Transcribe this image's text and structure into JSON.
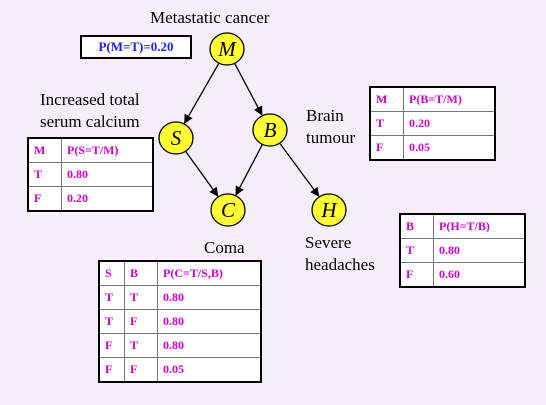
{
  "nodes": [
    {
      "id": "M",
      "letter": "M",
      "label": "Metastatic cancer"
    },
    {
      "id": "S",
      "letter": "S",
      "label_lines": [
        "Increased total",
        "serum calcium"
      ]
    },
    {
      "id": "B",
      "letter": "B",
      "label_lines": [
        "Brain",
        "tumour"
      ]
    },
    {
      "id": "C",
      "letter": "C",
      "label": "Coma"
    },
    {
      "id": "H",
      "letter": "H",
      "label_lines": [
        "Severe",
        "headaches"
      ]
    }
  ],
  "edges": [
    {
      "from": "M",
      "to": "S"
    },
    {
      "from": "M",
      "to": "B"
    },
    {
      "from": "S",
      "to": "C"
    },
    {
      "from": "B",
      "to": "C"
    },
    {
      "from": "B",
      "to": "H"
    }
  ],
  "prior_M": "P(M=T)=0.20",
  "cpt_S": {
    "headers": [
      "M",
      "P(S=T/M)"
    ],
    "rows": [
      [
        "T",
        "0.80"
      ],
      [
        "F",
        "0.20"
      ]
    ]
  },
  "cpt_B": {
    "headers": [
      "M",
      "P(B=T/M)"
    ],
    "rows": [
      [
        "T",
        "0.20"
      ],
      [
        "F",
        "0.05"
      ]
    ]
  },
  "cpt_H": {
    "headers": [
      "B",
      "P(H=T/B)"
    ],
    "rows": [
      [
        "T",
        "0.80"
      ],
      [
        "F",
        "0.60"
      ]
    ]
  },
  "cpt_C": {
    "headers": [
      "S",
      "B",
      "P(C=T/S,B)"
    ],
    "rows": [
      [
        "T",
        "T",
        "0.80"
      ],
      [
        "T",
        "F",
        "0.80"
      ],
      [
        "F",
        "T",
        "0.80"
      ],
      [
        "F",
        "F",
        "0.05"
      ]
    ]
  },
  "colors": {
    "node_fill": "#ffff33",
    "prior_text": "#1e1ee6",
    "table_text": "#cc00cc",
    "background": "#f3eef8"
  }
}
